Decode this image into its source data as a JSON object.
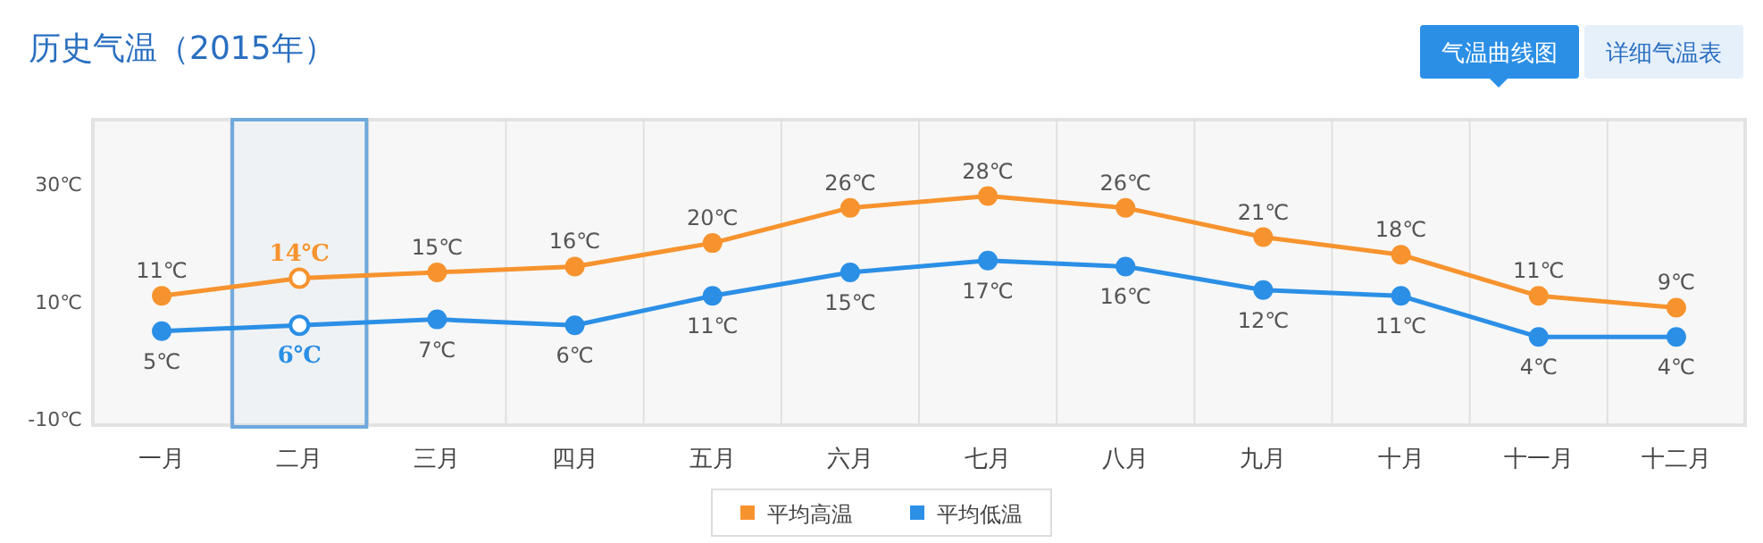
{
  "chart_data": {
    "type": "line",
    "title": "历史气温（2015年）",
    "categories": [
      "一月",
      "二月",
      "三月",
      "四月",
      "五月",
      "六月",
      "七月",
      "八月",
      "九月",
      "十月",
      "十一月",
      "十二月"
    ],
    "series": [
      {
        "name": "平均高温",
        "color": "#f7932e",
        "values": [
          11,
          14,
          15,
          16,
          20,
          26,
          28,
          26,
          21,
          18,
          11,
          9
        ],
        "value_labels": [
          "11℃",
          "14℃",
          "15℃",
          "16℃",
          "20℃",
          "26℃",
          "28℃",
          "26℃",
          "21℃",
          "18℃",
          "11℃",
          "9℃"
        ]
      },
      {
        "name": "平均低温",
        "color": "#2b8fe6",
        "values": [
          5,
          6,
          7,
          6,
          11,
          15,
          17,
          16,
          12,
          11,
          4,
          4
        ],
        "value_labels": [
          "5℃",
          "6℃",
          "7℃",
          "6℃",
          "11℃",
          "15℃",
          "17℃",
          "16℃",
          "12℃",
          "11℃",
          "4℃",
          "4℃"
        ]
      }
    ],
    "ylim": [
      -11,
      41
    ],
    "yticks": [
      {
        "value": -10,
        "label": "-10℃"
      },
      {
        "value": 10,
        "label": "10℃"
      },
      {
        "value": 30,
        "label": "30℃"
      }
    ],
    "bands": [
      {
        "axis": "x",
        "from": "二月",
        "to": "二月",
        "color": "#6fa8dc"
      }
    ],
    "annotations": [
      "气温曲线图",
      "详细气温表"
    ],
    "grid": "x",
    "legend": "bottom",
    "marker": "circle",
    "line_style": "solid"
  }
}
